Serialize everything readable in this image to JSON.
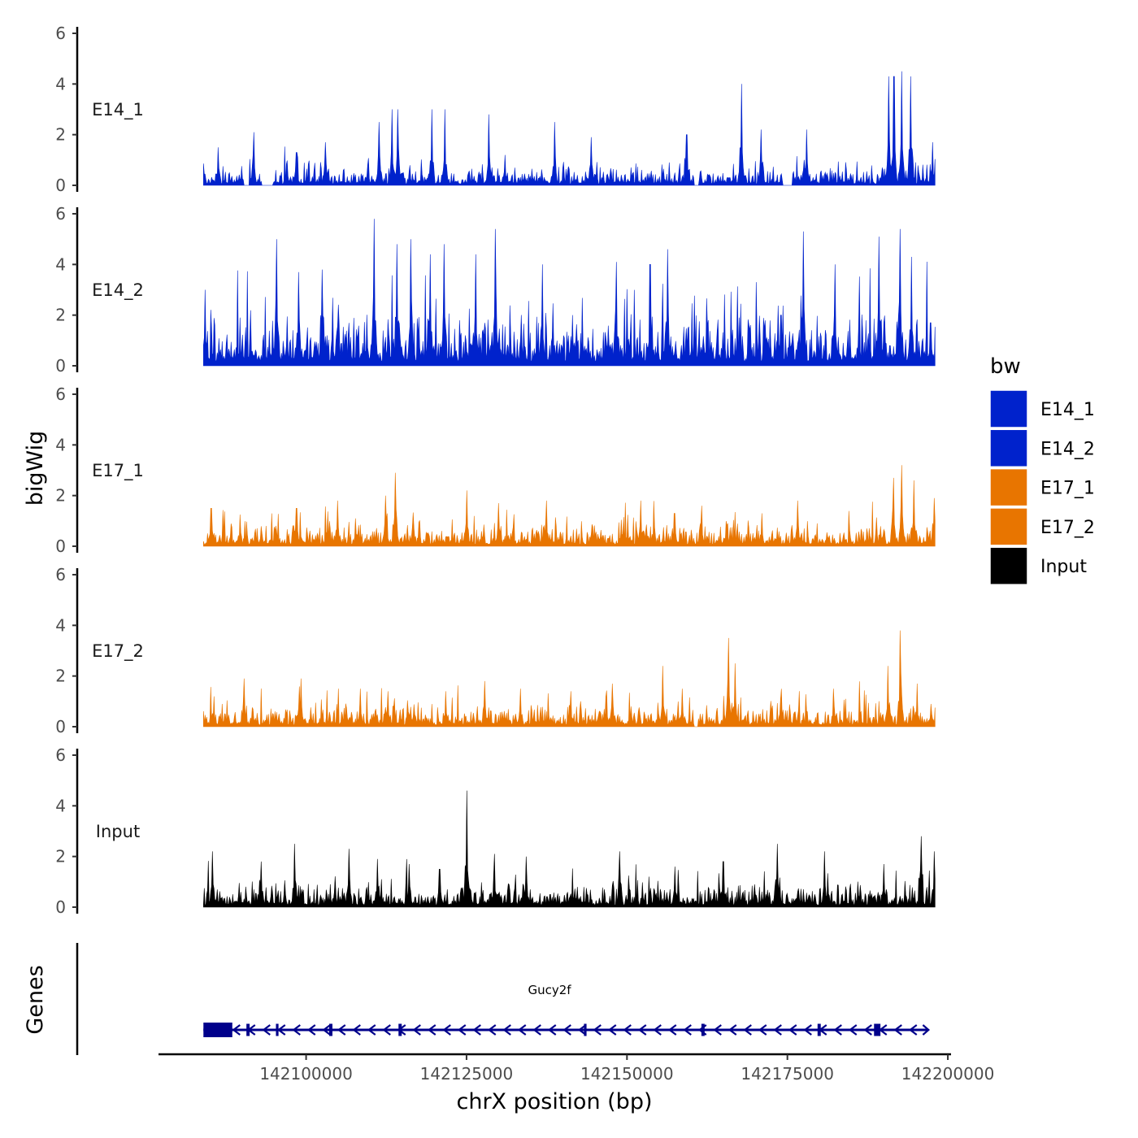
{
  "chart_data": {
    "type": "area",
    "chromosome": "chrX",
    "x_axis_title": "chrX position (bp)",
    "y_axis_title": "bigWig",
    "gene_axis_title": "Genes",
    "xlim": [
      142077000,
      142200500
    ],
    "data_range": [
      142084000,
      142198000
    ],
    "x_ticks": [
      142100000,
      142125000,
      142150000,
      142175000,
      142200000
    ],
    "x_tick_labels": [
      "142100000",
      "142125000",
      "142150000",
      "142175000",
      "142200000"
    ],
    "ylim": [
      0,
      6
    ],
    "y_ticks": [
      0,
      2,
      4,
      6
    ],
    "y_tick_labels": [
      "0",
      "2",
      "4",
      "6"
    ],
    "legend": {
      "title": "bw",
      "entries": [
        {
          "label": "E14_1",
          "color": "#0022CC"
        },
        {
          "label": "E14_2",
          "color": "#0022CC"
        },
        {
          "label": "E17_1",
          "color": "#E87500"
        },
        {
          "label": "E17_2",
          "color": "#E87500"
        },
        {
          "label": "Input",
          "color": "#000000"
        }
      ]
    },
    "series": [
      {
        "name": "E14_1",
        "color": "#0022CC",
        "baseline": 0.4,
        "gaps": [
          [
            142090300,
            142091200
          ],
          [
            142093000,
            142094800
          ],
          [
            142160500,
            142161200
          ],
          [
            142174300,
            142175800
          ]
        ],
        "peaks": [
          [
            142086300,
            1.5
          ],
          [
            142091800,
            2.1
          ],
          [
            142098500,
            1.3
          ],
          [
            142103000,
            1.7
          ],
          [
            142111400,
            2.5
          ],
          [
            142113400,
            3.0
          ],
          [
            142114300,
            3.0
          ],
          [
            142119600,
            3.0
          ],
          [
            142121600,
            3.0
          ],
          [
            142128500,
            2.8
          ],
          [
            142131000,
            1.2
          ],
          [
            142138700,
            2.5
          ],
          [
            142144400,
            1.9
          ],
          [
            142159300,
            2.0
          ],
          [
            142167800,
            4.0
          ],
          [
            142170900,
            2.2
          ],
          [
            142178000,
            2.2
          ],
          [
            142190800,
            4.3
          ],
          [
            142191600,
            4.3
          ],
          [
            142192800,
            4.5
          ],
          [
            142194200,
            4.3
          ],
          [
            142197600,
            1.7
          ]
        ]
      },
      {
        "name": "E14_2",
        "color": "#0022CC",
        "baseline": 1.2,
        "gaps": [],
        "peaks": [
          [
            142084300,
            3.0
          ],
          [
            142095400,
            5.0
          ],
          [
            142098800,
            3.7
          ],
          [
            142102500,
            3.8
          ],
          [
            142110600,
            5.8
          ],
          [
            142114200,
            4.8
          ],
          [
            142116300,
            5.0
          ],
          [
            142119300,
            4.4
          ],
          [
            142121500,
            4.8
          ],
          [
            142126400,
            4.4
          ],
          [
            142129500,
            5.4
          ],
          [
            142136800,
            4.0
          ],
          [
            142148300,
            4.1
          ],
          [
            142153600,
            4.0
          ],
          [
            142156300,
            4.6
          ],
          [
            142174000,
            2.0
          ],
          [
            142177500,
            5.3
          ],
          [
            142182400,
            4.0
          ],
          [
            142189300,
            5.1
          ],
          [
            142192500,
            5.4
          ],
          [
            142194300,
            4.3
          ],
          [
            142197300,
            1.7
          ]
        ]
      },
      {
        "name": "E17_1",
        "color": "#E87500",
        "baseline": 0.5,
        "gaps": [],
        "peaks": [
          [
            142085200,
            1.5
          ],
          [
            142098500,
            1.5
          ],
          [
            142104900,
            1.8
          ],
          [
            142112400,
            2.0
          ],
          [
            142113900,
            2.9
          ],
          [
            142125000,
            2.2
          ],
          [
            142130000,
            1.7
          ],
          [
            142137400,
            1.8
          ],
          [
            142152200,
            1.8
          ],
          [
            142157400,
            1.3
          ],
          [
            142161600,
            1.6
          ],
          [
            142171000,
            1.3
          ],
          [
            142176600,
            1.8
          ],
          [
            142191500,
            2.7
          ],
          [
            142192800,
            3.2
          ],
          [
            142194700,
            2.6
          ],
          [
            142197900,
            1.9
          ]
        ]
      },
      {
        "name": "E17_2",
        "color": "#E87500",
        "baseline": 0.5,
        "gaps": [
          [
            142160500,
            142161100
          ]
        ],
        "peaks": [
          [
            142090300,
            1.9
          ],
          [
            142099200,
            1.9
          ],
          [
            142108400,
            1.5
          ],
          [
            142112700,
            1.4
          ],
          [
            142121700,
            1.4
          ],
          [
            142127800,
            1.8
          ],
          [
            142133400,
            1.5
          ],
          [
            142141200,
            1.4
          ],
          [
            142147700,
            1.7
          ],
          [
            142155600,
            2.4
          ],
          [
            142158600,
            1.5
          ],
          [
            142165800,
            3.5
          ],
          [
            142166800,
            2.5
          ],
          [
            142174000,
            1.1
          ],
          [
            142182200,
            1.5
          ],
          [
            142190700,
            2.4
          ],
          [
            142192600,
            3.8
          ],
          [
            142195200,
            1.7
          ],
          [
            142197400,
            0.9
          ]
        ]
      },
      {
        "name": "Input",
        "color": "#000000",
        "baseline": 0.55,
        "gaps": [],
        "peaks": [
          [
            142085400,
            2.2
          ],
          [
            142093000,
            1.8
          ],
          [
            142098200,
            2.5
          ],
          [
            142106700,
            2.3
          ],
          [
            142111100,
            1.9
          ],
          [
            142116100,
            1.7
          ],
          [
            142120800,
            1.5
          ],
          [
            142125000,
            4.6
          ],
          [
            142129400,
            2.1
          ],
          [
            142134300,
            2.0
          ],
          [
            142148900,
            2.2
          ],
          [
            142157500,
            1.6
          ],
          [
            142165000,
            1.8
          ],
          [
            142173400,
            2.5
          ],
          [
            142180800,
            2.2
          ],
          [
            142190000,
            1.7
          ],
          [
            142195800,
            2.8
          ],
          [
            142197900,
            2.2
          ]
        ]
      }
    ],
    "gene": {
      "name": "Gucy2f",
      "strand": "-",
      "start": 142084000,
      "end": 142197000,
      "color": "#00008B",
      "exons": [
        [
          142084000,
          142088500
        ],
        [
          142090700,
          142091200
        ],
        [
          142095300,
          142095700
        ],
        [
          142103600,
          142104100
        ],
        [
          142114400,
          142114900
        ],
        [
          142143300,
          142143700
        ],
        [
          142161600,
          142162100
        ],
        [
          142179700,
          142180200
        ],
        [
          142188500,
          142189500
        ]
      ]
    }
  }
}
